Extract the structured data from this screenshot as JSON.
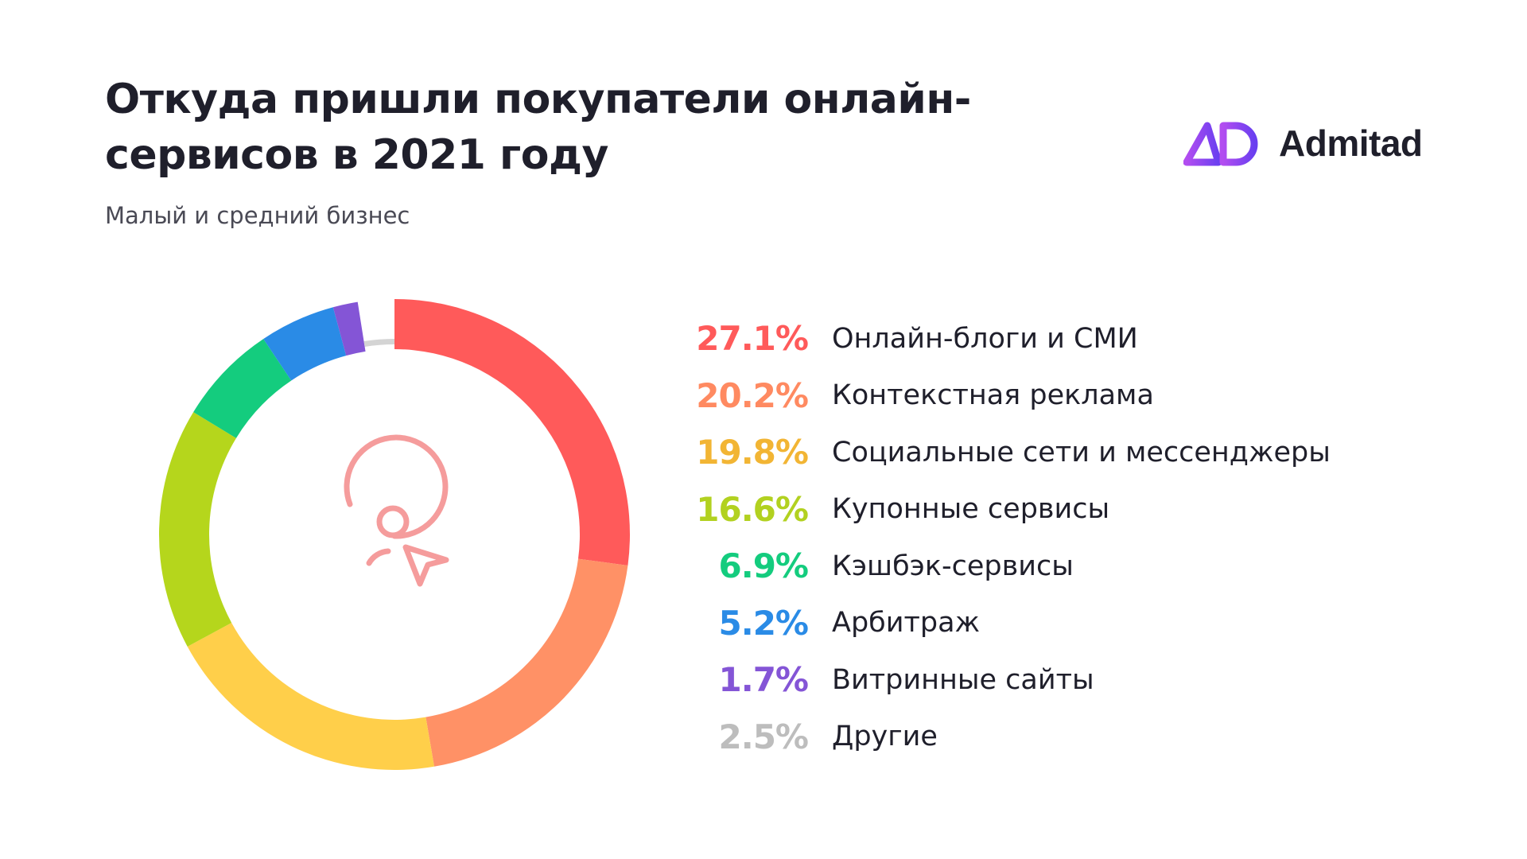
{
  "title": "Откуда пришли покупатели онлайн-сервисов в 2021 году",
  "subtitle": "Малый и средний бизнес",
  "logo": {
    "text": "Admitad",
    "color": "#7a3ff2",
    "icon": "admitad-ad-logo-icon"
  },
  "center_icon": "user-cursor-icon",
  "chart_data": {
    "type": "pie",
    "variant": "donut",
    "unit": "%",
    "title": "Откуда пришли покупатели онлайн-сервисов в 2021 году",
    "subtitle": "Малый и средний бизнес",
    "legend_position": "right",
    "slices": [
      {
        "label": "Онлайн-блоги и СМИ",
        "value": 27.1,
        "display": "27.1%",
        "color": "#ff5a5a"
      },
      {
        "label": "Контекстная реклама",
        "value": 20.2,
        "display": "20.2%",
        "color": "#ff9166"
      },
      {
        "label": "Социальные сети и мессенджеры",
        "value": 19.8,
        "display": "19.8%",
        "color": "#ffcf4a"
      },
      {
        "label": "Купонные сервисы",
        "value": 16.6,
        "display": "16.6%",
        "color": "#b5d61c"
      },
      {
        "label": "Кэшбэк-сервисы",
        "value": 6.9,
        "display": "6.9%",
        "color": "#14cc7e"
      },
      {
        "label": "Арбитраж",
        "value": 5.2,
        "display": "5.2%",
        "color": "#2a8be6"
      },
      {
        "label": "Витринные сайты",
        "value": 1.7,
        "display": "1.7%",
        "color": "#8455d6"
      },
      {
        "label": "Другие",
        "value": 2.5,
        "display": "2.5%",
        "color": "#d4d4d4"
      }
    ],
    "legend_value_colors": [
      "#ff5a5a",
      "#ff8a61",
      "#f2b534",
      "#b2d120",
      "#14cc7e",
      "#2a8be6",
      "#8455d6",
      "#bdbdbd"
    ]
  }
}
